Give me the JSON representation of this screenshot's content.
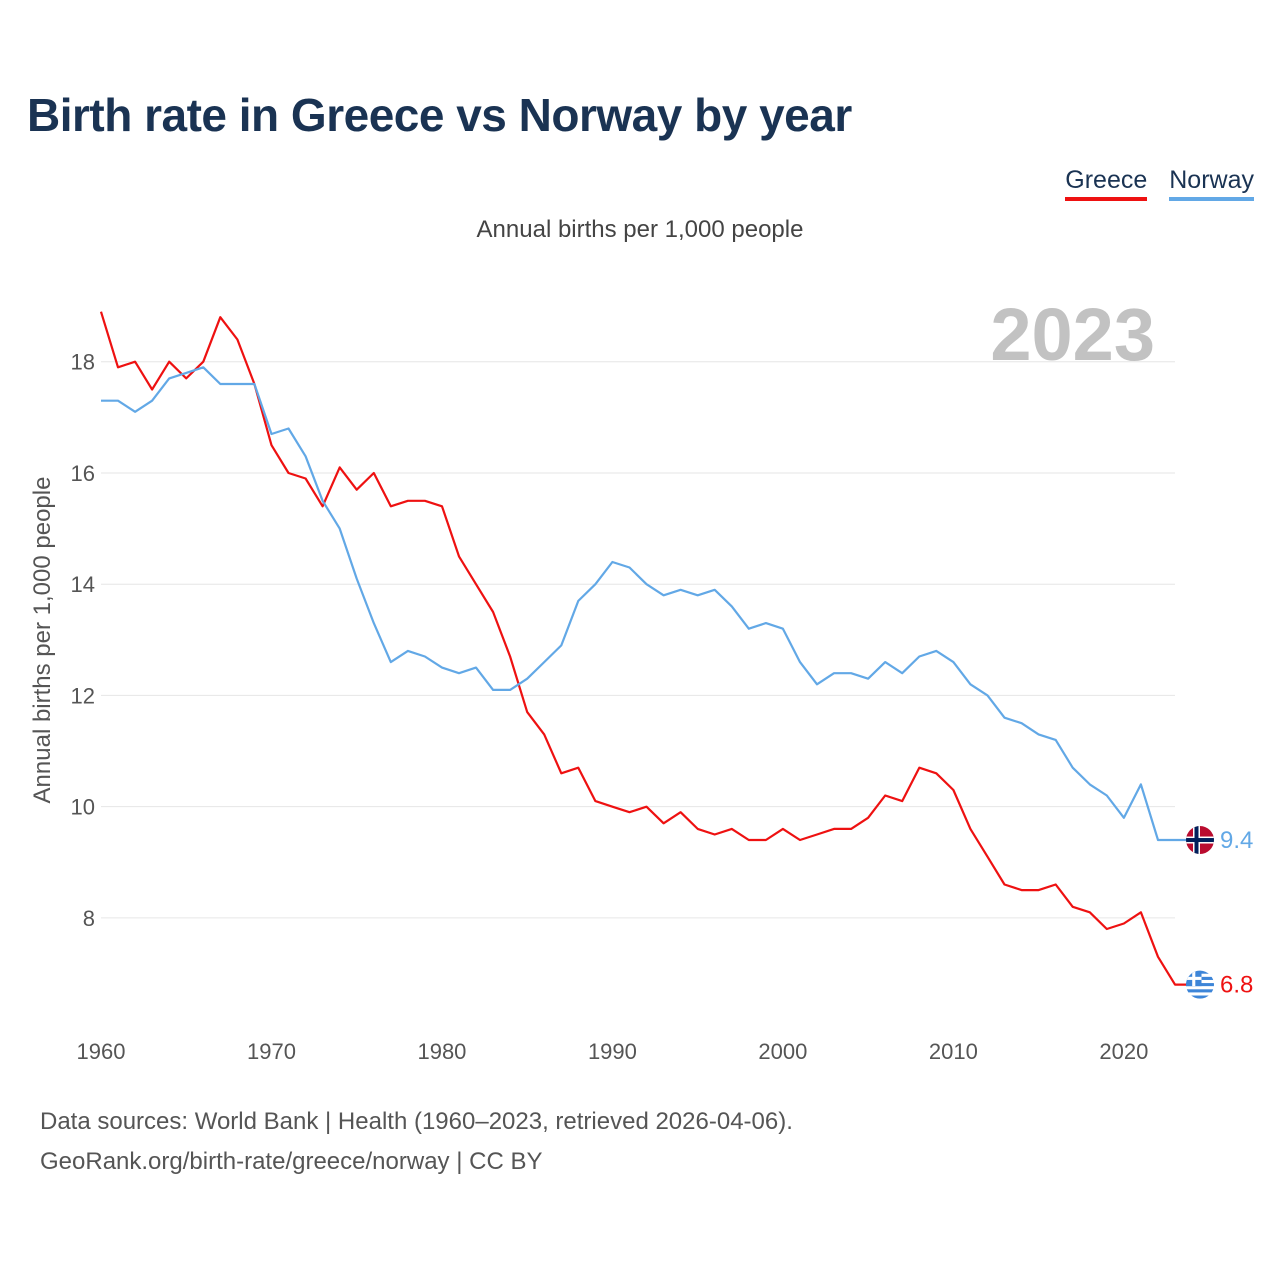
{
  "title": "Birth rate in Greece vs Norway by year",
  "subtitle": "Annual births per 1,000 people",
  "legend": [
    {
      "label": "Greece",
      "color": "#ee1111"
    },
    {
      "label": "Norway",
      "color": "#62a8e6"
    }
  ],
  "footer": {
    "source": "Data sources: World Bank | Health (1960–2023, retrieved 2026-04-06).",
    "url": "GeoRank.org/birth-rate/greece/norway | CC BY"
  },
  "chart_data": {
    "type": "line",
    "title": "Birth rate in Greece vs Norway by year",
    "subtitle": "Annual births per 1,000 people",
    "xlabel": "",
    "ylabel": "Annual births per 1,000 people",
    "year_mark": "2023",
    "xlim": [
      1960,
      2023
    ],
    "ylim": [
      6.2,
      19.2
    ],
    "x_ticks": [
      1960,
      1970,
      1980,
      1990,
      2000,
      2010,
      2020
    ],
    "y_ticks": [
      8,
      10,
      12,
      14,
      16,
      18
    ],
    "x": [
      1960,
      1961,
      1962,
      1963,
      1964,
      1965,
      1966,
      1967,
      1968,
      1969,
      1970,
      1971,
      1972,
      1973,
      1974,
      1975,
      1976,
      1977,
      1978,
      1979,
      1980,
      1981,
      1982,
      1983,
      1984,
      1985,
      1986,
      1987,
      1988,
      1989,
      1990,
      1991,
      1992,
      1993,
      1994,
      1995,
      1996,
      1997,
      1998,
      1999,
      2000,
      2001,
      2002,
      2003,
      2004,
      2005,
      2006,
      2007,
      2008,
      2009,
      2010,
      2011,
      2012,
      2013,
      2014,
      2015,
      2016,
      2017,
      2018,
      2019,
      2020,
      2021,
      2022,
      2023
    ],
    "series": [
      {
        "name": "Greece",
        "color": "#ee1111",
        "end_label": "6.8",
        "values": [
          18.9,
          17.9,
          18.0,
          17.5,
          18.0,
          17.7,
          18.0,
          18.8,
          18.4,
          17.6,
          16.5,
          16.0,
          15.9,
          15.4,
          16.1,
          15.7,
          16.0,
          15.4,
          15.5,
          15.5,
          15.4,
          14.5,
          14.0,
          13.5,
          12.7,
          11.7,
          11.3,
          10.6,
          10.7,
          10.1,
          10.0,
          9.9,
          10.0,
          9.7,
          9.9,
          9.6,
          9.5,
          9.6,
          9.4,
          9.4,
          9.6,
          9.4,
          9.5,
          9.6,
          9.6,
          9.8,
          10.2,
          10.1,
          10.7,
          10.6,
          10.3,
          9.6,
          9.1,
          8.6,
          8.5,
          8.5,
          8.6,
          8.2,
          8.1,
          7.8,
          7.9,
          8.1,
          7.3,
          6.8
        ]
      },
      {
        "name": "Norway",
        "color": "#62a8e6",
        "end_label": "9.4",
        "values": [
          17.3,
          17.3,
          17.1,
          17.3,
          17.7,
          17.8,
          17.9,
          17.6,
          17.6,
          17.6,
          16.7,
          16.8,
          16.3,
          15.5,
          15.0,
          14.1,
          13.3,
          12.6,
          12.8,
          12.7,
          12.5,
          12.4,
          12.5,
          12.1,
          12.1,
          12.3,
          12.6,
          12.9,
          13.7,
          14.0,
          14.4,
          14.3,
          14.0,
          13.8,
          13.9,
          13.8,
          13.9,
          13.6,
          13.2,
          13.3,
          13.2,
          12.6,
          12.2,
          12.4,
          12.4,
          12.3,
          12.6,
          12.4,
          12.7,
          12.8,
          12.6,
          12.2,
          12.0,
          11.6,
          11.5,
          11.3,
          11.2,
          10.7,
          10.4,
          10.2,
          9.8,
          10.4,
          9.4,
          9.4
        ]
      }
    ]
  }
}
